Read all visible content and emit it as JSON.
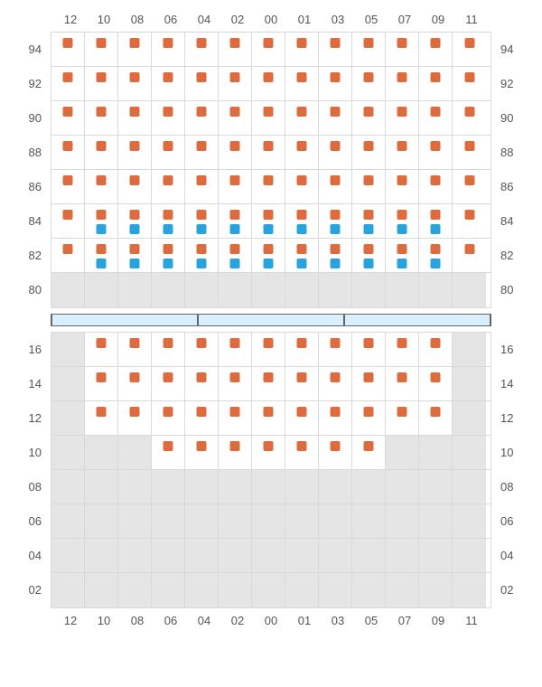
{
  "colors": {
    "seat_primary": "#dd6b3d",
    "seat_secondary": "#29a3dd",
    "cell_bg": "#ffffff",
    "empty_bg": "#e5e5e5",
    "grid_line": "#d9d9d9",
    "divider_fill": "#d9efff",
    "label_color": "#555555"
  },
  "columns": [
    "12",
    "10",
    "08",
    "06",
    "04",
    "02",
    "00",
    "01",
    "03",
    "05",
    "07",
    "09",
    "11"
  ],
  "upper": {
    "row_labels": [
      "94",
      "92",
      "90",
      "88",
      "86",
      "84",
      "82",
      "80"
    ],
    "rows": [
      [
        1,
        1,
        1,
        1,
        1,
        1,
        1,
        1,
        1,
        1,
        1,
        1,
        1
      ],
      [
        1,
        1,
        1,
        1,
        1,
        1,
        1,
        1,
        1,
        1,
        1,
        1,
        1
      ],
      [
        1,
        1,
        1,
        1,
        1,
        1,
        1,
        1,
        1,
        1,
        1,
        1,
        1
      ],
      [
        1,
        1,
        1,
        1,
        1,
        1,
        1,
        1,
        1,
        1,
        1,
        1,
        1
      ],
      [
        1,
        1,
        1,
        1,
        1,
        1,
        1,
        1,
        1,
        1,
        1,
        1,
        1
      ],
      [
        1,
        2,
        2,
        2,
        2,
        2,
        2,
        2,
        2,
        2,
        2,
        2,
        1
      ],
      [
        1,
        2,
        2,
        2,
        2,
        2,
        2,
        2,
        2,
        2,
        2,
        2,
        1
      ],
      [
        0,
        0,
        0,
        0,
        0,
        0,
        0,
        0,
        0,
        0,
        0,
        0,
        0
      ]
    ]
  },
  "divider_segments": 3,
  "lower": {
    "row_labels": [
      "16",
      "14",
      "12",
      "10",
      "08",
      "06",
      "04",
      "02"
    ],
    "rows": [
      [
        0,
        1,
        1,
        1,
        1,
        1,
        1,
        1,
        1,
        1,
        1,
        1,
        0
      ],
      [
        0,
        1,
        1,
        1,
        1,
        1,
        1,
        1,
        1,
        1,
        1,
        1,
        0
      ],
      [
        0,
        1,
        1,
        1,
        1,
        1,
        1,
        1,
        1,
        1,
        1,
        1,
        0
      ],
      [
        0,
        0,
        0,
        1,
        1,
        1,
        1,
        1,
        1,
        1,
        0,
        0,
        0
      ],
      [
        0,
        0,
        0,
        0,
        0,
        0,
        0,
        0,
        0,
        0,
        0,
        0,
        0
      ],
      [
        0,
        0,
        0,
        0,
        0,
        0,
        0,
        0,
        0,
        0,
        0,
        0,
        0
      ],
      [
        0,
        0,
        0,
        0,
        0,
        0,
        0,
        0,
        0,
        0,
        0,
        0,
        0
      ],
      [
        0,
        0,
        0,
        0,
        0,
        0,
        0,
        0,
        0,
        0,
        0,
        0,
        0
      ]
    ]
  }
}
